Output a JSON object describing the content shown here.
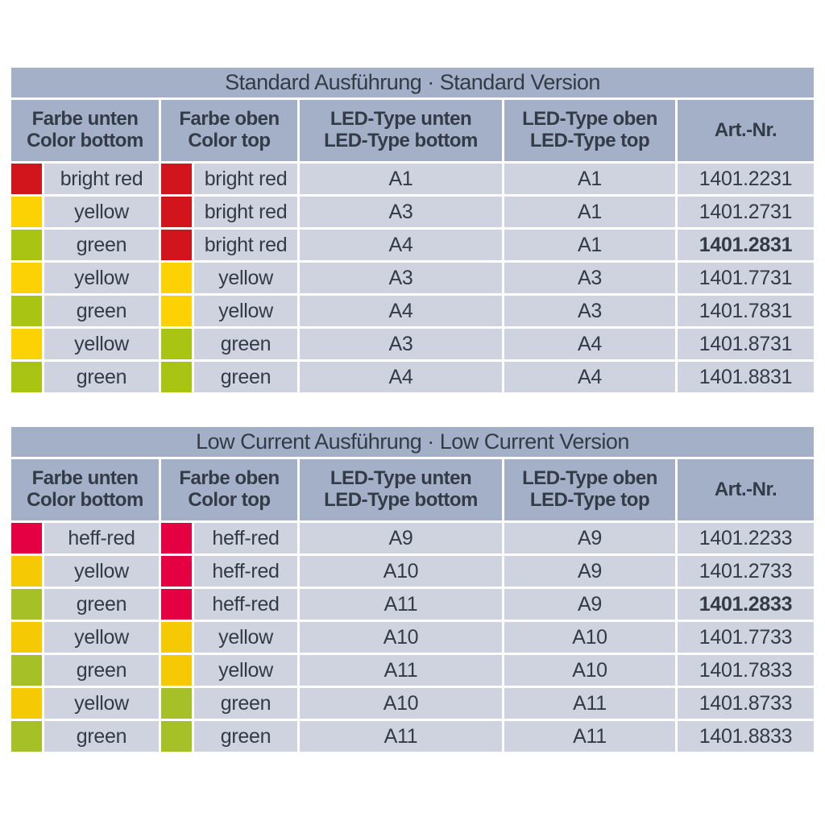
{
  "colors": {
    "panel_bg": "#a4b0c8",
    "row_bg": "#ced3df",
    "text": "#333b47",
    "bright_red": "#d2151d",
    "heff_red": "#e50044",
    "yellow_standard": "#fdd205",
    "yellow_low_current": "#f5ca05",
    "green_standard": "#aac414",
    "green_low_current": "#a5c127"
  },
  "tables": [
    {
      "title": "Standard Ausführung · Standard Version",
      "columns": [
        {
          "line1": "Farbe unten",
          "line2": "Color bottom"
        },
        {
          "line1": "Farbe oben",
          "line2": "Color top"
        },
        {
          "line1": "LED-Type unten",
          "line2": "LED-Type bottom"
        },
        {
          "line1": "LED-Type oben",
          "line2": "LED-Type top"
        },
        {
          "line1": "Art.-Nr.",
          "line2": ""
        }
      ],
      "rows": [
        {
          "color_bottom": {
            "label": "bright red",
            "color": "#d2151d"
          },
          "color_top": {
            "label": "bright red",
            "color": "#d2151d"
          },
          "led_bottom": "A1",
          "led_top": "A1",
          "art": {
            "value": "1401.2231",
            "bold": false
          }
        },
        {
          "color_bottom": {
            "label": "yellow",
            "color": "#fdd205"
          },
          "color_top": {
            "label": "bright red",
            "color": "#d2151d"
          },
          "led_bottom": "A3",
          "led_top": "A1",
          "art": {
            "value": "1401.2731",
            "bold": false
          }
        },
        {
          "color_bottom": {
            "label": "green",
            "color": "#aac414"
          },
          "color_top": {
            "label": "bright red",
            "color": "#d2151d"
          },
          "led_bottom": "A4",
          "led_top": "A1",
          "art": {
            "value": "1401.2831",
            "bold": true
          }
        },
        {
          "color_bottom": {
            "label": "yellow",
            "color": "#fdd205"
          },
          "color_top": {
            "label": "yellow",
            "color": "#fdd205"
          },
          "led_bottom": "A3",
          "led_top": "A3",
          "art": {
            "value": "1401.7731",
            "bold": false
          }
        },
        {
          "color_bottom": {
            "label": "green",
            "color": "#aac414"
          },
          "color_top": {
            "label": "yellow",
            "color": "#fdd205"
          },
          "led_bottom": "A4",
          "led_top": "A3",
          "art": {
            "value": "1401.7831",
            "bold": false
          }
        },
        {
          "color_bottom": {
            "label": "yellow",
            "color": "#fdd205"
          },
          "color_top": {
            "label": "green",
            "color": "#aac414"
          },
          "led_bottom": "A3",
          "led_top": "A4",
          "art": {
            "value": "1401.8731",
            "bold": false
          }
        },
        {
          "color_bottom": {
            "label": "green",
            "color": "#aac414"
          },
          "color_top": {
            "label": "green",
            "color": "#aac414"
          },
          "led_bottom": "A4",
          "led_top": "A4",
          "art": {
            "value": "1401.8831",
            "bold": false
          }
        }
      ]
    },
    {
      "title": "Low Current Ausführung · Low Current Version",
      "columns": [
        {
          "line1": "Farbe unten",
          "line2": "Color bottom"
        },
        {
          "line1": "Farbe oben",
          "line2": "Color top"
        },
        {
          "line1": "LED-Type unten",
          "line2": "LED-Type bottom"
        },
        {
          "line1": "LED-Type oben",
          "line2": "LED-Type top"
        },
        {
          "line1": "Art.-Nr.",
          "line2": ""
        }
      ],
      "rows": [
        {
          "color_bottom": {
            "label": "heff-red",
            "color": "#e50044"
          },
          "color_top": {
            "label": "heff-red",
            "color": "#e50044"
          },
          "led_bottom": "A9",
          "led_top": "A9",
          "art": {
            "value": "1401.2233",
            "bold": false
          }
        },
        {
          "color_bottom": {
            "label": "yellow",
            "color": "#f5ca05"
          },
          "color_top": {
            "label": "heff-red",
            "color": "#e50044"
          },
          "led_bottom": "A10",
          "led_top": "A9",
          "art": {
            "value": "1401.2733",
            "bold": false
          }
        },
        {
          "color_bottom": {
            "label": "green",
            "color": "#a5c127"
          },
          "color_top": {
            "label": "heff-red",
            "color": "#e50044"
          },
          "led_bottom": "A11",
          "led_top": "A9",
          "art": {
            "value": "1401.2833",
            "bold": true
          }
        },
        {
          "color_bottom": {
            "label": "yellow",
            "color": "#f5ca05"
          },
          "color_top": {
            "label": "yellow",
            "color": "#f5ca05"
          },
          "led_bottom": "A10",
          "led_top": "A10",
          "art": {
            "value": "1401.7733",
            "bold": false
          }
        },
        {
          "color_bottom": {
            "label": "green",
            "color": "#a5c127"
          },
          "color_top": {
            "label": "yellow",
            "color": "#f5ca05"
          },
          "led_bottom": "A11",
          "led_top": "A10",
          "art": {
            "value": "1401.7833",
            "bold": false
          }
        },
        {
          "color_bottom": {
            "label": "yellow",
            "color": "#f5ca05"
          },
          "color_top": {
            "label": "green",
            "color": "#a5c127"
          },
          "led_bottom": "A10",
          "led_top": "A11",
          "art": {
            "value": "1401.8733",
            "bold": false
          }
        },
        {
          "color_bottom": {
            "label": "green",
            "color": "#a5c127"
          },
          "color_top": {
            "label": "green",
            "color": "#a5c127"
          },
          "led_bottom": "A11",
          "led_top": "A11",
          "art": {
            "value": "1401.8833",
            "bold": false
          }
        }
      ]
    }
  ]
}
